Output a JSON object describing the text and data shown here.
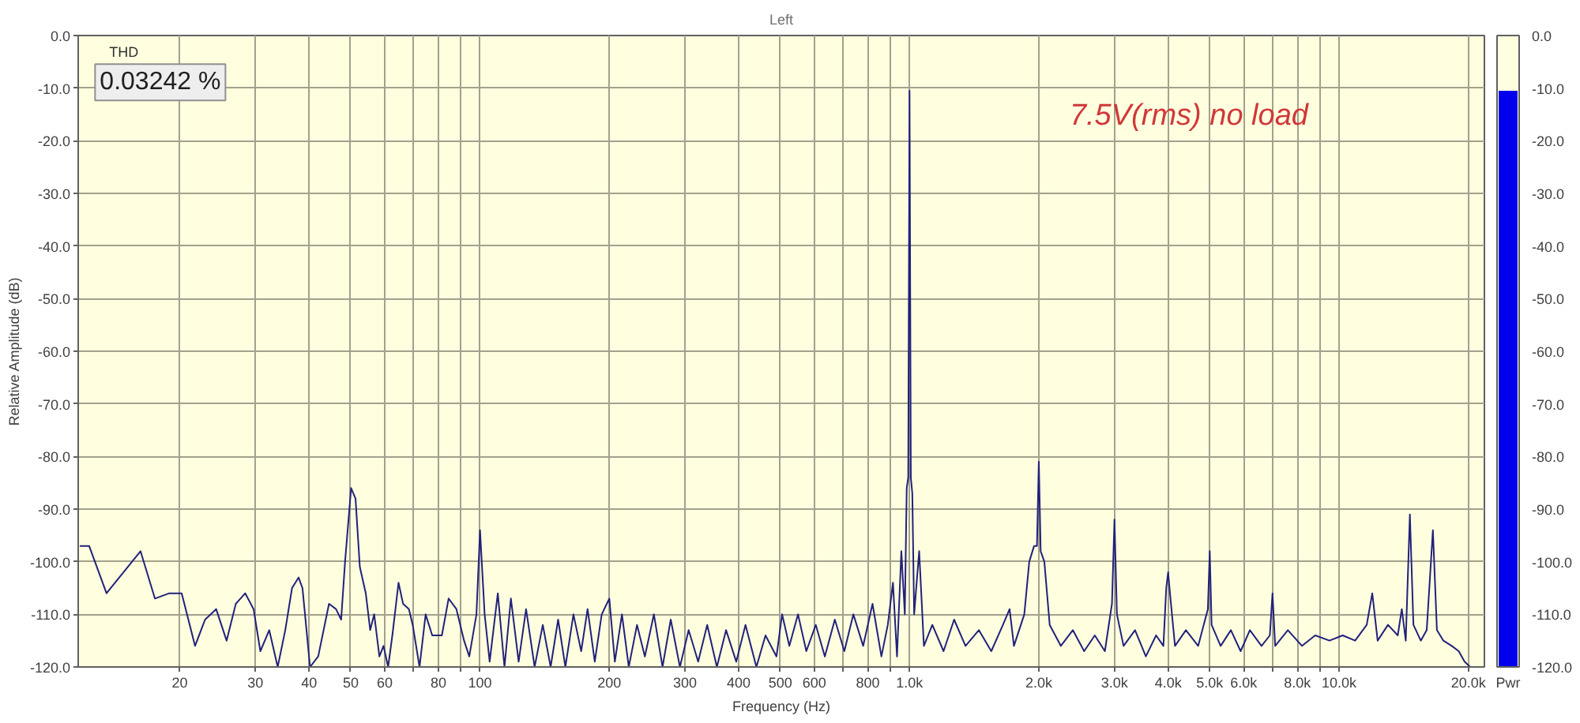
{
  "chart_data": [
    {
      "type": "line",
      "title": "Left",
      "xlabel": "Frequency (Hz)",
      "ylabel": "Relative Amplitude (dB)",
      "log": "x",
      "grid": true,
      "xlim": [
        11.6,
        21800
      ],
      "ylim": [
        -120,
        0
      ],
      "xticks": [
        20,
        30,
        40,
        50,
        60,
        {
          "value": 70,
          "label": null
        },
        80,
        {
          "value": 90,
          "label": null
        },
        100,
        200,
        300,
        400,
        500,
        600,
        {
          "value": 700,
          "label": null
        },
        800,
        {
          "value": 900,
          "label": null
        },
        {
          "value": 1000,
          "label": "1.0k"
        },
        {
          "value": 2000,
          "label": "2.0k"
        },
        {
          "value": 3000,
          "label": "3.0k"
        },
        {
          "value": 4000,
          "label": "4.0k"
        },
        {
          "value": 5000,
          "label": "5.0k"
        },
        {
          "value": 6000,
          "label": "6.0k"
        },
        {
          "value": 7000,
          "label": null
        },
        {
          "value": 8000,
          "label": "8.0k"
        },
        {
          "value": 9000,
          "label": null
        },
        {
          "value": 10000,
          "label": "10.0k"
        },
        {
          "value": 20000,
          "label": "20.0k"
        }
      ],
      "yticks": [
        {
          "value": 0,
          "label": "0.0"
        },
        {
          "value": -10,
          "label": "-10.0"
        },
        {
          "value": -20,
          "label": "-20.0"
        },
        {
          "value": -30,
          "label": "-30.0"
        },
        {
          "value": -40,
          "label": "-40.0"
        },
        {
          "value": -50,
          "label": "-50.0"
        },
        {
          "value": -60,
          "label": "-60.0"
        },
        {
          "value": -70,
          "label": "-70.0"
        },
        {
          "value": -80,
          "label": "-80.0"
        },
        {
          "value": -90,
          "label": "-90.0"
        },
        {
          "value": -100,
          "label": "-100.0"
        },
        {
          "value": -110,
          "label": "-110.0"
        },
        {
          "value": -120,
          "label": "-120.0"
        }
      ],
      "annotations": [
        "THD",
        "0.03242 %",
        "7.5V(rms) no load"
      ],
      "series": [
        {
          "color": "#22227a",
          "x": [
            11.7,
            12.3,
            13.5,
            16.2,
            17.5,
            18.9,
            20.2,
            21.7,
            22.9,
            24.3,
            25.7,
            27.0,
            28.4,
            29.7,
            30.8,
            32.3,
            33.8,
            35.2,
            36.5,
            37.8,
            38.6,
            40.2,
            42.0,
            44.5,
            46.2,
            47.5,
            48.5,
            50.1,
            51.3,
            52.5,
            54.2,
            55.5,
            56.7,
            58.3,
            59.6,
            61.1,
            62.5,
            64.6,
            66.2,
            68.3,
            69.7,
            72.3,
            74.7,
            77.4,
            81.5,
            84.5,
            88.1,
            91.8,
            94.4,
            98.1,
            100,
            102.5,
            105.3,
            110,
            114,
            118,
            123,
            128,
            134,
            140,
            146,
            152,
            158,
            165,
            172,
            178,
            185,
            192,
            200,
            206,
            214,
            222,
            232,
            242,
            254,
            266,
            278,
            292,
            306,
            322,
            338,
            356,
            374,
            395,
            415,
            440,
            462,
            490,
            505,
            525,
            550,
            575,
            605,
            635,
            670,
            705,
            740,
            780,
            820,
            860,
            890,
            915,
            935,
            957,
            975,
            985,
            993,
            1000,
            1007,
            1015,
            1025,
            1053,
            1080,
            1130,
            1200,
            1270,
            1350,
            1450,
            1550,
            1650,
            1710,
            1750,
            1850,
            1900,
            1950,
            1980,
            2000,
            2020,
            2060,
            2120,
            2250,
            2400,
            2550,
            2700,
            2850,
            2960,
            3000,
            3040,
            3150,
            3350,
            3550,
            3750,
            3900,
            3960,
            4000,
            4040,
            4150,
            4400,
            4700,
            4950,
            5000,
            5050,
            5300,
            5600,
            5900,
            6200,
            6600,
            6900,
            7000,
            7100,
            7600,
            8200,
            8800,
            9500,
            10200,
            10900,
            11600,
            11950,
            12300,
            13000,
            13700,
            14000,
            14300,
            14620,
            14900,
            15500,
            16000,
            16540,
            16900,
            17500,
            18300,
            19000,
            19600,
            20200
          ],
          "values": [
            -97,
            -97,
            -106,
            -98,
            -107,
            -106,
            -106,
            -116,
            -111,
            -109,
            -115,
            -108,
            -106,
            -109,
            -117,
            -113,
            -120,
            -113,
            -105,
            -103,
            -105,
            -120,
            -118,
            -108,
            -109,
            -111,
            -100,
            -86,
            -88,
            -101,
            -106,
            -113,
            -110,
            -118,
            -116,
            -120,
            -114,
            -104,
            -108,
            -109,
            -112,
            -120,
            -110,
            -114,
            -114,
            -107,
            -109,
            -115,
            -118,
            -110,
            -94,
            -110,
            -119,
            -106,
            -120,
            -107,
            -119,
            -109,
            -120,
            -112,
            -120,
            -111,
            -120,
            -110,
            -117,
            -109,
            -119,
            -110,
            -107,
            -119,
            -110,
            -120,
            -112,
            -118,
            -110,
            -120,
            -111,
            -120,
            -113,
            -119,
            -112,
            -120,
            -113,
            -119,
            -112,
            -120,
            -114,
            -118,
            -110,
            -116,
            -110,
            -117,
            -112,
            -118,
            -111,
            -117,
            -110,
            -116,
            -108,
            -118,
            -112,
            -104,
            -118,
            -98,
            -110,
            -86,
            -84,
            -10.5,
            -84,
            -87,
            -110,
            -98,
            -116,
            -112,
            -117,
            -111,
            -116,
            -113,
            -117,
            -112,
            -109,
            -116,
            -110,
            -100,
            -97,
            -97,
            -81,
            -98,
            -100,
            -112,
            -116,
            -113,
            -117,
            -114,
            -117,
            -108,
            -92,
            -110,
            -116,
            -113,
            -118,
            -114,
            -116,
            -105,
            -102,
            -106,
            -116,
            -113,
            -116,
            -109,
            -98,
            -112,
            -116,
            -113,
            -117,
            -113,
            -116,
            -114,
            -106,
            -116,
            -113,
            -116,
            -114,
            -115,
            -114,
            -115,
            -112,
            -106,
            -115,
            -112,
            -114,
            -109,
            -115,
            -91,
            -112,
            -115,
            -113,
            -94,
            -113,
            -115,
            -116,
            -117,
            -119,
            -120
          ]
        }
      ]
    },
    {
      "type": "bar",
      "categories": [
        "Pwr"
      ],
      "values": [
        109.5
      ],
      "base": [
        -120
      ],
      "color": "#0000ee",
      "ylim": [
        -120,
        0
      ],
      "yticks": [
        {
          "value": 0,
          "label": "0.0"
        },
        {
          "value": -10,
          "label": "-10.0"
        },
        {
          "value": -20,
          "label": "-20.0"
        },
        {
          "value": -30,
          "label": "-30.0"
        },
        {
          "value": -40,
          "label": "-40.0"
        },
        {
          "value": -50,
          "label": "-50.0"
        },
        {
          "value": -60,
          "label": "-60.0"
        },
        {
          "value": -70,
          "label": "-70.0"
        },
        {
          "value": -80,
          "label": "-80.0"
        },
        {
          "value": -90,
          "label": "-90.0"
        },
        {
          "value": -100,
          "label": "-100.0"
        },
        {
          "value": -110,
          "label": "-110.0"
        },
        {
          "value": -120,
          "label": "-120.0"
        }
      ]
    }
  ]
}
